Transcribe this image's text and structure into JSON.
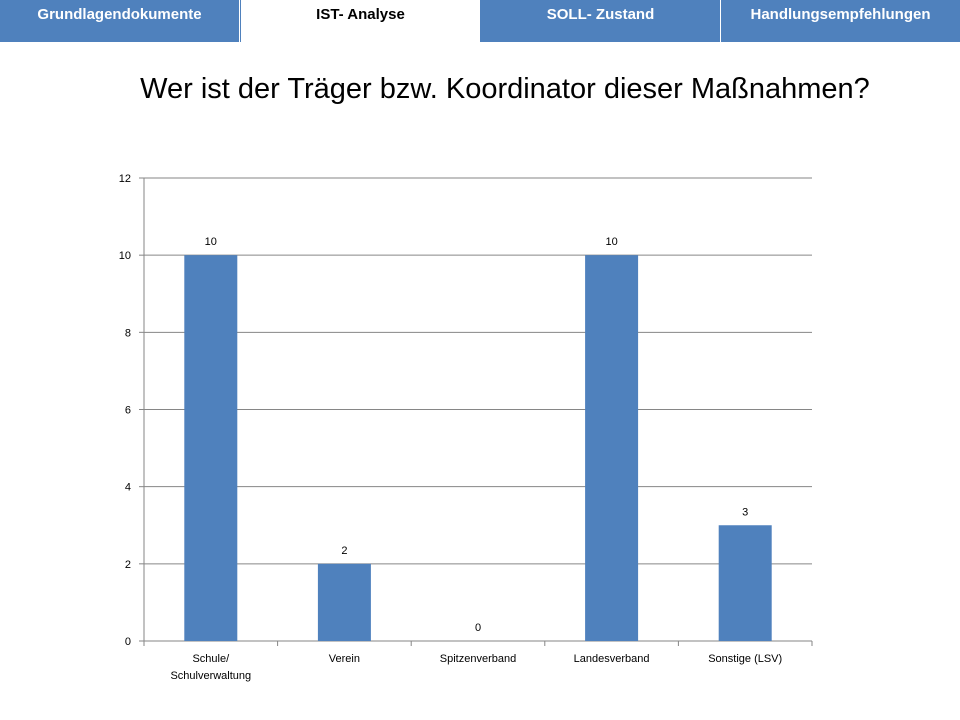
{
  "tabs": [
    {
      "label": "Grundlagendokumente",
      "active": false
    },
    {
      "label": "IST- Analyse",
      "active": true
    },
    {
      "label": "SOLL- Zustand",
      "active": false
    },
    {
      "label": "Handlungsempfehlungen",
      "active": false
    }
  ],
  "title": "Wer ist der Träger bzw. Koordinator dieser Maßnahmen?",
  "chart_data": {
    "type": "bar",
    "categories": [
      [
        "Schule/",
        "Schulverwaltung"
      ],
      [
        "Verein"
      ],
      [
        "Spitzenverband"
      ],
      [
        "Landesverband"
      ],
      [
        "Sonstige (LSV)"
      ]
    ],
    "values": [
      10,
      2,
      0,
      10,
      3
    ],
    "data_labels": [
      "10",
      "2",
      "0",
      "10",
      "3"
    ],
    "ylim": [
      0,
      12
    ],
    "yticks": [
      0,
      2,
      4,
      6,
      8,
      10,
      12
    ],
    "grid": true,
    "bar_color": "#4f81bd"
  }
}
